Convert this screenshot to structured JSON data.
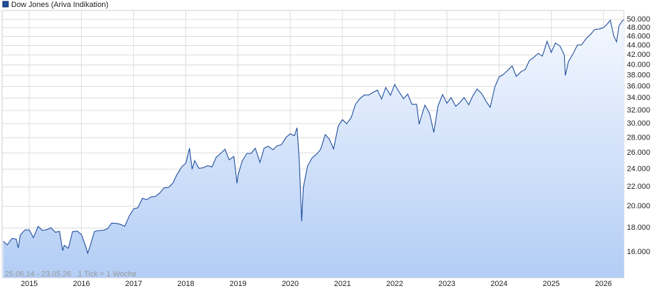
{
  "chart_data": {
    "type": "line",
    "series": [
      {
        "name": "Dow Jones (Ariva Indikation)",
        "color": "#1f4e9c",
        "values": [
          16850,
          16560,
          17100,
          17040,
          16320,
          17390,
          17830,
          17820,
          17160,
          18130,
          17780,
          17840,
          18010,
          17620,
          17690,
          16100,
          16530,
          16280,
          17660,
          17720,
          17430,
          16470,
          15900,
          16520,
          17690,
          17770,
          17790,
          17930,
          18430,
          18400,
          18310,
          18140,
          19120,
          19760,
          19860,
          20810,
          20660,
          20940,
          21010,
          21350,
          21890,
          21950,
          22400,
          23380,
          24270,
          24720,
          26600,
          24000,
          25030,
          24100,
          24160,
          24420,
          24270,
          25420,
          25960,
          26460,
          25120,
          25540,
          22400,
          23330,
          25000,
          25920,
          25930,
          26590,
          24820,
          26600,
          26860,
          26400,
          26920,
          27050,
          28050,
          28540,
          28260,
          29400,
          25410,
          18600,
          21920,
          24350,
          25380,
          25810,
          26430,
          28430,
          27780,
          26500,
          29640,
          30600,
          29980,
          30930,
          32980,
          33870,
          34530,
          34500,
          34930,
          35360,
          33840,
          35820,
          34480,
          36340,
          35130,
          33890,
          34680,
          32980,
          32990,
          29900,
          30780,
          32850,
          31510,
          28730,
          32730,
          34590,
          33150,
          34090,
          32660,
          33270,
          34100,
          32910,
          34410,
          35560,
          34720,
          33510,
          32500,
          35950,
          37690,
          38150,
          38990,
          39810,
          37820,
          38690,
          39120,
          40840,
          41560,
          42330,
          41760,
          44910,
          42540,
          44540,
          43840,
          42000,
          38000,
          40670,
          42270,
          44090,
          44130,
          45540,
          46400,
          47560,
          47700,
          48000,
          49000,
          49800,
          46000,
          44800,
          48500,
          49600,
          49900
        ]
      }
    ],
    "x": [
      2014.5,
      2014.58,
      2014.67,
      2014.75,
      2014.79,
      2014.83,
      2014.92,
      2015.0,
      2015.08,
      2015.17,
      2015.25,
      2015.33,
      2015.42,
      2015.5,
      2015.58,
      2015.64,
      2015.67,
      2015.75,
      2015.83,
      2015.92,
      2016.0,
      2016.08,
      2016.12,
      2016.17,
      2016.25,
      2016.33,
      2016.42,
      2016.5,
      2016.58,
      2016.67,
      2016.75,
      2016.83,
      2016.92,
      2017.0,
      2017.08,
      2017.17,
      2017.25,
      2017.33,
      2017.42,
      2017.5,
      2017.58,
      2017.67,
      2017.75,
      2017.83,
      2017.92,
      2018.0,
      2018.07,
      2018.12,
      2018.17,
      2018.25,
      2018.33,
      2018.42,
      2018.5,
      2018.58,
      2018.67,
      2018.75,
      2018.83,
      2018.92,
      2018.98,
      2019.0,
      2019.08,
      2019.17,
      2019.25,
      2019.33,
      2019.42,
      2019.5,
      2019.58,
      2019.67,
      2019.75,
      2019.83,
      2019.92,
      2020.0,
      2020.08,
      2020.13,
      2020.17,
      2020.22,
      2020.25,
      2020.33,
      2020.42,
      2020.5,
      2020.58,
      2020.67,
      2020.75,
      2020.83,
      2020.92,
      2021.0,
      2021.08,
      2021.17,
      2021.25,
      2021.33,
      2021.42,
      2021.5,
      2021.58,
      2021.67,
      2021.75,
      2021.83,
      2021.92,
      2022.0,
      2022.08,
      2022.17,
      2022.25,
      2022.33,
      2022.42,
      2022.47,
      2022.5,
      2022.58,
      2022.67,
      2022.75,
      2022.83,
      2022.92,
      2023.0,
      2023.08,
      2023.17,
      2023.25,
      2023.33,
      2023.42,
      2023.5,
      2023.58,
      2023.67,
      2023.75,
      2023.83,
      2023.92,
      2024.0,
      2024.08,
      2024.17,
      2024.25,
      2024.33,
      2024.42,
      2024.5,
      2024.58,
      2024.67,
      2024.75,
      2024.83,
      2024.92,
      2025.0,
      2025.08,
      2025.17,
      2025.25,
      2025.27,
      2025.33,
      2025.42,
      2025.5,
      2025.58,
      2025.67,
      2025.75,
      2025.83,
      2025.92,
      2026.0,
      2026.08,
      2026.13,
      2026.2,
      2026.25,
      2026.3,
      2026.36,
      2026.39
    ],
    "xlim": [
      2014.48,
      2026.39
    ],
    "xticks": [
      2015,
      2016,
      2017,
      2018,
      2019,
      2020,
      2021,
      2022,
      2023,
      2024,
      2025,
      2026
    ],
    "ylim": [
      14100,
      52250
    ],
    "yticks": [
      {
        "value": 16000,
        "label": "16.000"
      },
      {
        "value": 18000,
        "label": "18.000"
      },
      {
        "value": 20000,
        "label": "20.000"
      },
      {
        "value": 22000,
        "label": "22.000"
      },
      {
        "value": 24000,
        "label": "24.000"
      },
      {
        "value": 26000,
        "label": "26.000"
      },
      {
        "value": 28000,
        "label": "28.000"
      },
      {
        "value": 30000,
        "label": "30.000"
      },
      {
        "value": 32000,
        "label": "32.000"
      },
      {
        "value": 34000,
        "label": "34.000"
      },
      {
        "value": 36000,
        "label": "36.000"
      },
      {
        "value": 38000,
        "label": "38.000"
      },
      {
        "value": 40000,
        "label": "40.000"
      },
      {
        "value": 42000,
        "label": "42.000"
      },
      {
        "value": 44000,
        "label": "44.000"
      },
      {
        "value": 46000,
        "label": "46.000"
      },
      {
        "value": 48000,
        "label": "48.000"
      },
      {
        "value": 50000,
        "label": "50.000"
      }
    ],
    "log_scale": true,
    "grid": true,
    "annotations": [
      "25.06.14 - 23.05.26",
      "1 Tick = 1 Woche"
    ]
  }
}
